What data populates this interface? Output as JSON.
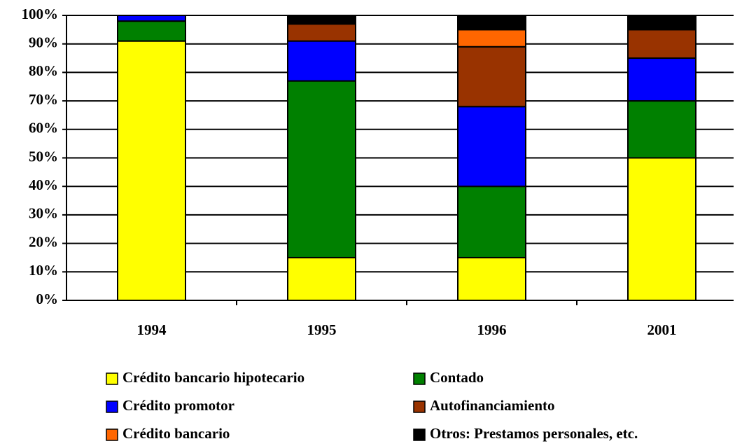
{
  "chart_data": {
    "type": "stacked_bar",
    "categories": [
      "1994",
      "1995",
      "1996",
      "2001"
    ],
    "series": [
      {
        "name": "Crédito bancario hipotecario",
        "color": "#ffff00",
        "values": [
          91,
          15,
          15,
          50
        ]
      },
      {
        "name": "Contado",
        "color": "#008000",
        "values": [
          7,
          62,
          25,
          20
        ]
      },
      {
        "name": "Crédito promotor",
        "color": "#0000ff",
        "values": [
          2,
          14,
          28,
          15
        ]
      },
      {
        "name": "Autofinanciamiento",
        "color": "#993300",
        "values": [
          0,
          6,
          21,
          10
        ]
      },
      {
        "name": "Crédito bancario",
        "color": "#ff6600",
        "values": [
          0,
          0,
          6,
          0
        ]
      },
      {
        "name": "Otros: Prestamos personales, etc.",
        "color": "#000000",
        "values": [
          0,
          3,
          5,
          5
        ]
      }
    ],
    "ylim": [
      0,
      100
    ],
    "yticks": [
      {
        "value": 0,
        "label": "0%"
      },
      {
        "value": 10,
        "label": "10%"
      },
      {
        "value": 20,
        "label": "20%"
      },
      {
        "value": 30,
        "label": "30%"
      },
      {
        "value": 40,
        "label": "40%"
      },
      {
        "value": 50,
        "label": "50%"
      },
      {
        "value": 60,
        "label": "60%"
      },
      {
        "value": 70,
        "label": "70%"
      },
      {
        "value": 80,
        "label": "80%"
      },
      {
        "value": 90,
        "label": "90%"
      },
      {
        "value": 100,
        "label": "100%"
      }
    ],
    "grid": true,
    "legend": "bottom"
  }
}
